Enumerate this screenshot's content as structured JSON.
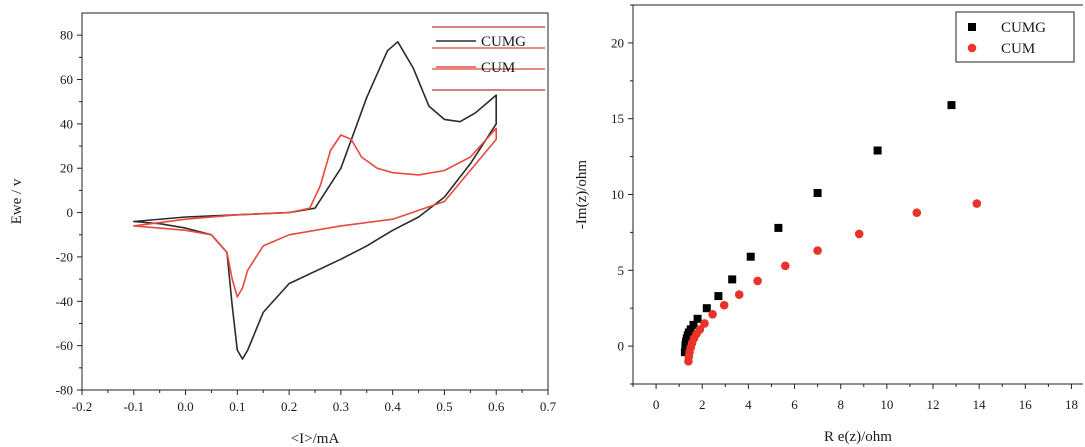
{
  "figure": {
    "panels": [
      {
        "id": "cv",
        "xlabel": "<I>/mA",
        "ylabel": "Ewe / v",
        "legend": [
          {
            "name": "CUMG",
            "color": "#2b2b2b"
          },
          {
            "name": "CUM",
            "color": "#e8493f"
          }
        ]
      },
      {
        "id": "eis",
        "xlabel": "R e(z)/ohm",
        "ylabel": "-Im(z)/ohm",
        "legend": [
          {
            "name": "CUMG",
            "color": "#000000",
            "marker": "square"
          },
          {
            "name": "CUM",
            "color": "#e8322a",
            "marker": "circle"
          }
        ]
      }
    ]
  },
  "chart_data": [
    {
      "type": "line",
      "xlabel": "<I>/mA",
      "ylabel": "Ewe / v",
      "xlim": [
        -0.2,
        0.7
      ],
      "ylim": [
        -80,
        90
      ],
      "xticks": [
        -0.2,
        -0.1,
        0.0,
        0.1,
        0.2,
        0.3,
        0.4,
        0.5,
        0.6,
        0.7
      ],
      "xtick_labels": [
        "-0.2",
        "-0.1",
        "0.0",
        "0.1",
        "0.2",
        "0.3",
        "0.4",
        "0.5",
        "0.6",
        "0.7"
      ],
      "yticks": [
        -80,
        -60,
        -40,
        -20,
        0,
        20,
        40,
        60,
        80
      ],
      "legend_position": "top-right",
      "series": [
        {
          "name": "CUMG",
          "color": "#2b2b2b",
          "x": [
            -0.1,
            0.0,
            0.1,
            0.2,
            0.25,
            0.3,
            0.35,
            0.39,
            0.41,
            0.44,
            0.47,
            0.5,
            0.53,
            0.56,
            0.6,
            0.6,
            0.55,
            0.5,
            0.45,
            0.4,
            0.35,
            0.3,
            0.2,
            0.15,
            0.12,
            0.11,
            0.1,
            0.09,
            0.08,
            0.05,
            0.0,
            -0.05,
            -0.1
          ],
          "y": [
            -4,
            -2,
            -1,
            0,
            2,
            20,
            52,
            73,
            77,
            65,
            48,
            42,
            41,
            45,
            53,
            40,
            22,
            7,
            -2,
            -8,
            -15,
            -21,
            -32,
            -45,
            -62,
            -66,
            -62,
            -42,
            -18,
            -10,
            -7,
            -5,
            -4
          ]
        },
        {
          "name": "CUM",
          "color": "#e8493f",
          "x": [
            -0.1,
            0.0,
            0.1,
            0.2,
            0.24,
            0.26,
            0.28,
            0.3,
            0.32,
            0.34,
            0.37,
            0.4,
            0.45,
            0.5,
            0.55,
            0.6,
            0.6,
            0.5,
            0.4,
            0.3,
            0.2,
            0.15,
            0.12,
            0.11,
            0.1,
            0.09,
            0.08,
            0.05,
            0.0,
            -0.05,
            -0.1
          ],
          "y": [
            -6,
            -3,
            -1,
            0,
            2,
            12,
            28,
            35,
            33,
            25,
            20,
            18,
            17,
            19,
            25,
            38,
            33,
            5,
            -3,
            -6,
            -10,
            -15,
            -26,
            -34,
            -38,
            -30,
            -18,
            -10,
            -8,
            -7,
            -6
          ]
        }
      ]
    },
    {
      "type": "scatter",
      "xlabel": "R e(z)/ohm",
      "ylabel": "-Im(z)/ohm",
      "xlim": [
        -1,
        18.5
      ],
      "ylim": [
        -2.5,
        22.5
      ],
      "xticks": [
        0,
        2,
        4,
        6,
        8,
        10,
        12,
        14,
        16,
        18
      ],
      "yticks": [
        0,
        5,
        10,
        15,
        20
      ],
      "legend_position": "top-right",
      "series": [
        {
          "name": "CUMG",
          "color": "#000000",
          "marker": "square",
          "x": [
            1.25,
            1.27,
            1.28,
            1.3,
            1.33,
            1.37,
            1.42,
            1.5,
            1.62,
            1.8,
            2.2,
            2.7,
            3.3,
            4.1,
            5.3,
            7.0,
            9.6,
            12.8
          ],
          "y": [
            -0.4,
            -0.1,
            0.1,
            0.3,
            0.5,
            0.7,
            0.9,
            1.1,
            1.4,
            1.8,
            2.5,
            3.3,
            4.4,
            5.9,
            7.8,
            10.1,
            12.9,
            15.9
          ]
        },
        {
          "name": "CUM",
          "color": "#e8322a",
          "marker": "circle",
          "x": [
            1.4,
            1.42,
            1.45,
            1.5,
            1.56,
            1.64,
            1.75,
            1.9,
            2.1,
            2.45,
            2.95,
            3.6,
            4.4,
            5.6,
            7.0,
            8.8,
            11.3,
            13.9
          ],
          "y": [
            -1.0,
            -0.7,
            -0.4,
            -0.1,
            0.2,
            0.5,
            0.8,
            1.1,
            1.5,
            2.1,
            2.7,
            3.4,
            4.3,
            5.3,
            6.3,
            7.4,
            8.8,
            9.4
          ]
        }
      ]
    }
  ]
}
